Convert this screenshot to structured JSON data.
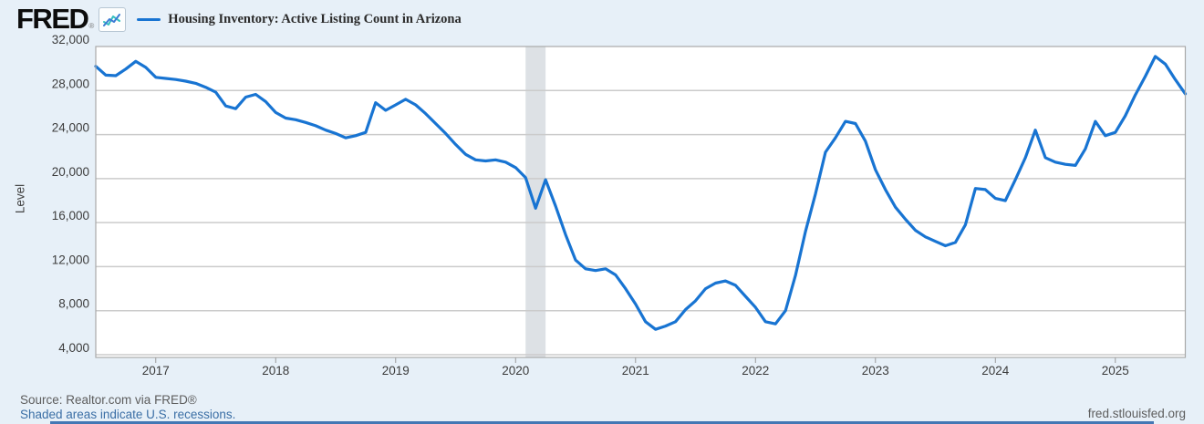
{
  "header": {
    "logo_text": "FRED",
    "registered_mark": "®",
    "legend": {
      "label": "Housing Inventory: Active Listing Count in Arizona",
      "line_color": "#1874d2"
    }
  },
  "chart_data": {
    "type": "line",
    "title": "Housing Inventory: Active Listing Count in Arizona",
    "ylabel": "Level",
    "ylim": [
      4000,
      32000
    ],
    "yticks": [
      32000,
      28000,
      24000,
      20000,
      16000,
      12000,
      8000,
      4000
    ],
    "xticks_years": [
      2017,
      2018,
      2019,
      2020,
      2021,
      2022,
      2023,
      2024,
      2025
    ],
    "grid": true,
    "series": {
      "name": "Housing Inventory: Active Listing Count in Arizona",
      "frequency": "monthly",
      "start": "2016-07",
      "end": "2025-08",
      "values": [
        30200,
        29400,
        29350,
        29950,
        30650,
        30100,
        29200,
        29100,
        29000,
        28850,
        28650,
        28300,
        27850,
        26600,
        26350,
        27400,
        27650,
        27000,
        26000,
        25500,
        25350,
        25100,
        24800,
        24400,
        24100,
        23700,
        23900,
        24200,
        26900,
        26200,
        26700,
        27200,
        26700,
        25900,
        25000,
        24100,
        23100,
        22200,
        21700,
        21600,
        21700,
        21500,
        21000,
        20100,
        17300,
        19900,
        17500,
        14900,
        12600,
        11800,
        11650,
        11800,
        11250,
        10000,
        8600,
        7000,
        6300,
        6600,
        7000,
        8100,
        8900,
        10000,
        10500,
        10700,
        10300,
        9300,
        8300,
        7000,
        6800,
        8000,
        11200,
        15200,
        18600,
        22400,
        23700,
        25200,
        25000,
        23400,
        20800,
        19000,
        17400,
        16300,
        15300,
        14700,
        14300,
        13900,
        14200,
        15800,
        19100,
        19000,
        18200,
        18000,
        19900,
        21900,
        24400,
        21900,
        21500,
        21300,
        21200,
        22700,
        25200,
        23900,
        24200,
        25700,
        27600,
        29300,
        31100,
        30400,
        29000,
        27700
      ]
    },
    "recession_bands": [
      {
        "start": "2020-02",
        "end": "2020-04"
      }
    ],
    "colors": {
      "line": "#1874d2",
      "plot_background": "#ffffff",
      "page_background": "#e7f0f8",
      "gridline": "#cbcbcb",
      "plot_border": "#a9a9a9",
      "recession_band": "#dde1e5",
      "axis_text": "#3c3c3c"
    },
    "legend_position": "top"
  },
  "footer": {
    "source": "Source: Realtor.com via FRED®",
    "recession_note": "Shaded areas indicate U.S. recessions.",
    "site": "fred.stlouisfed.org"
  }
}
